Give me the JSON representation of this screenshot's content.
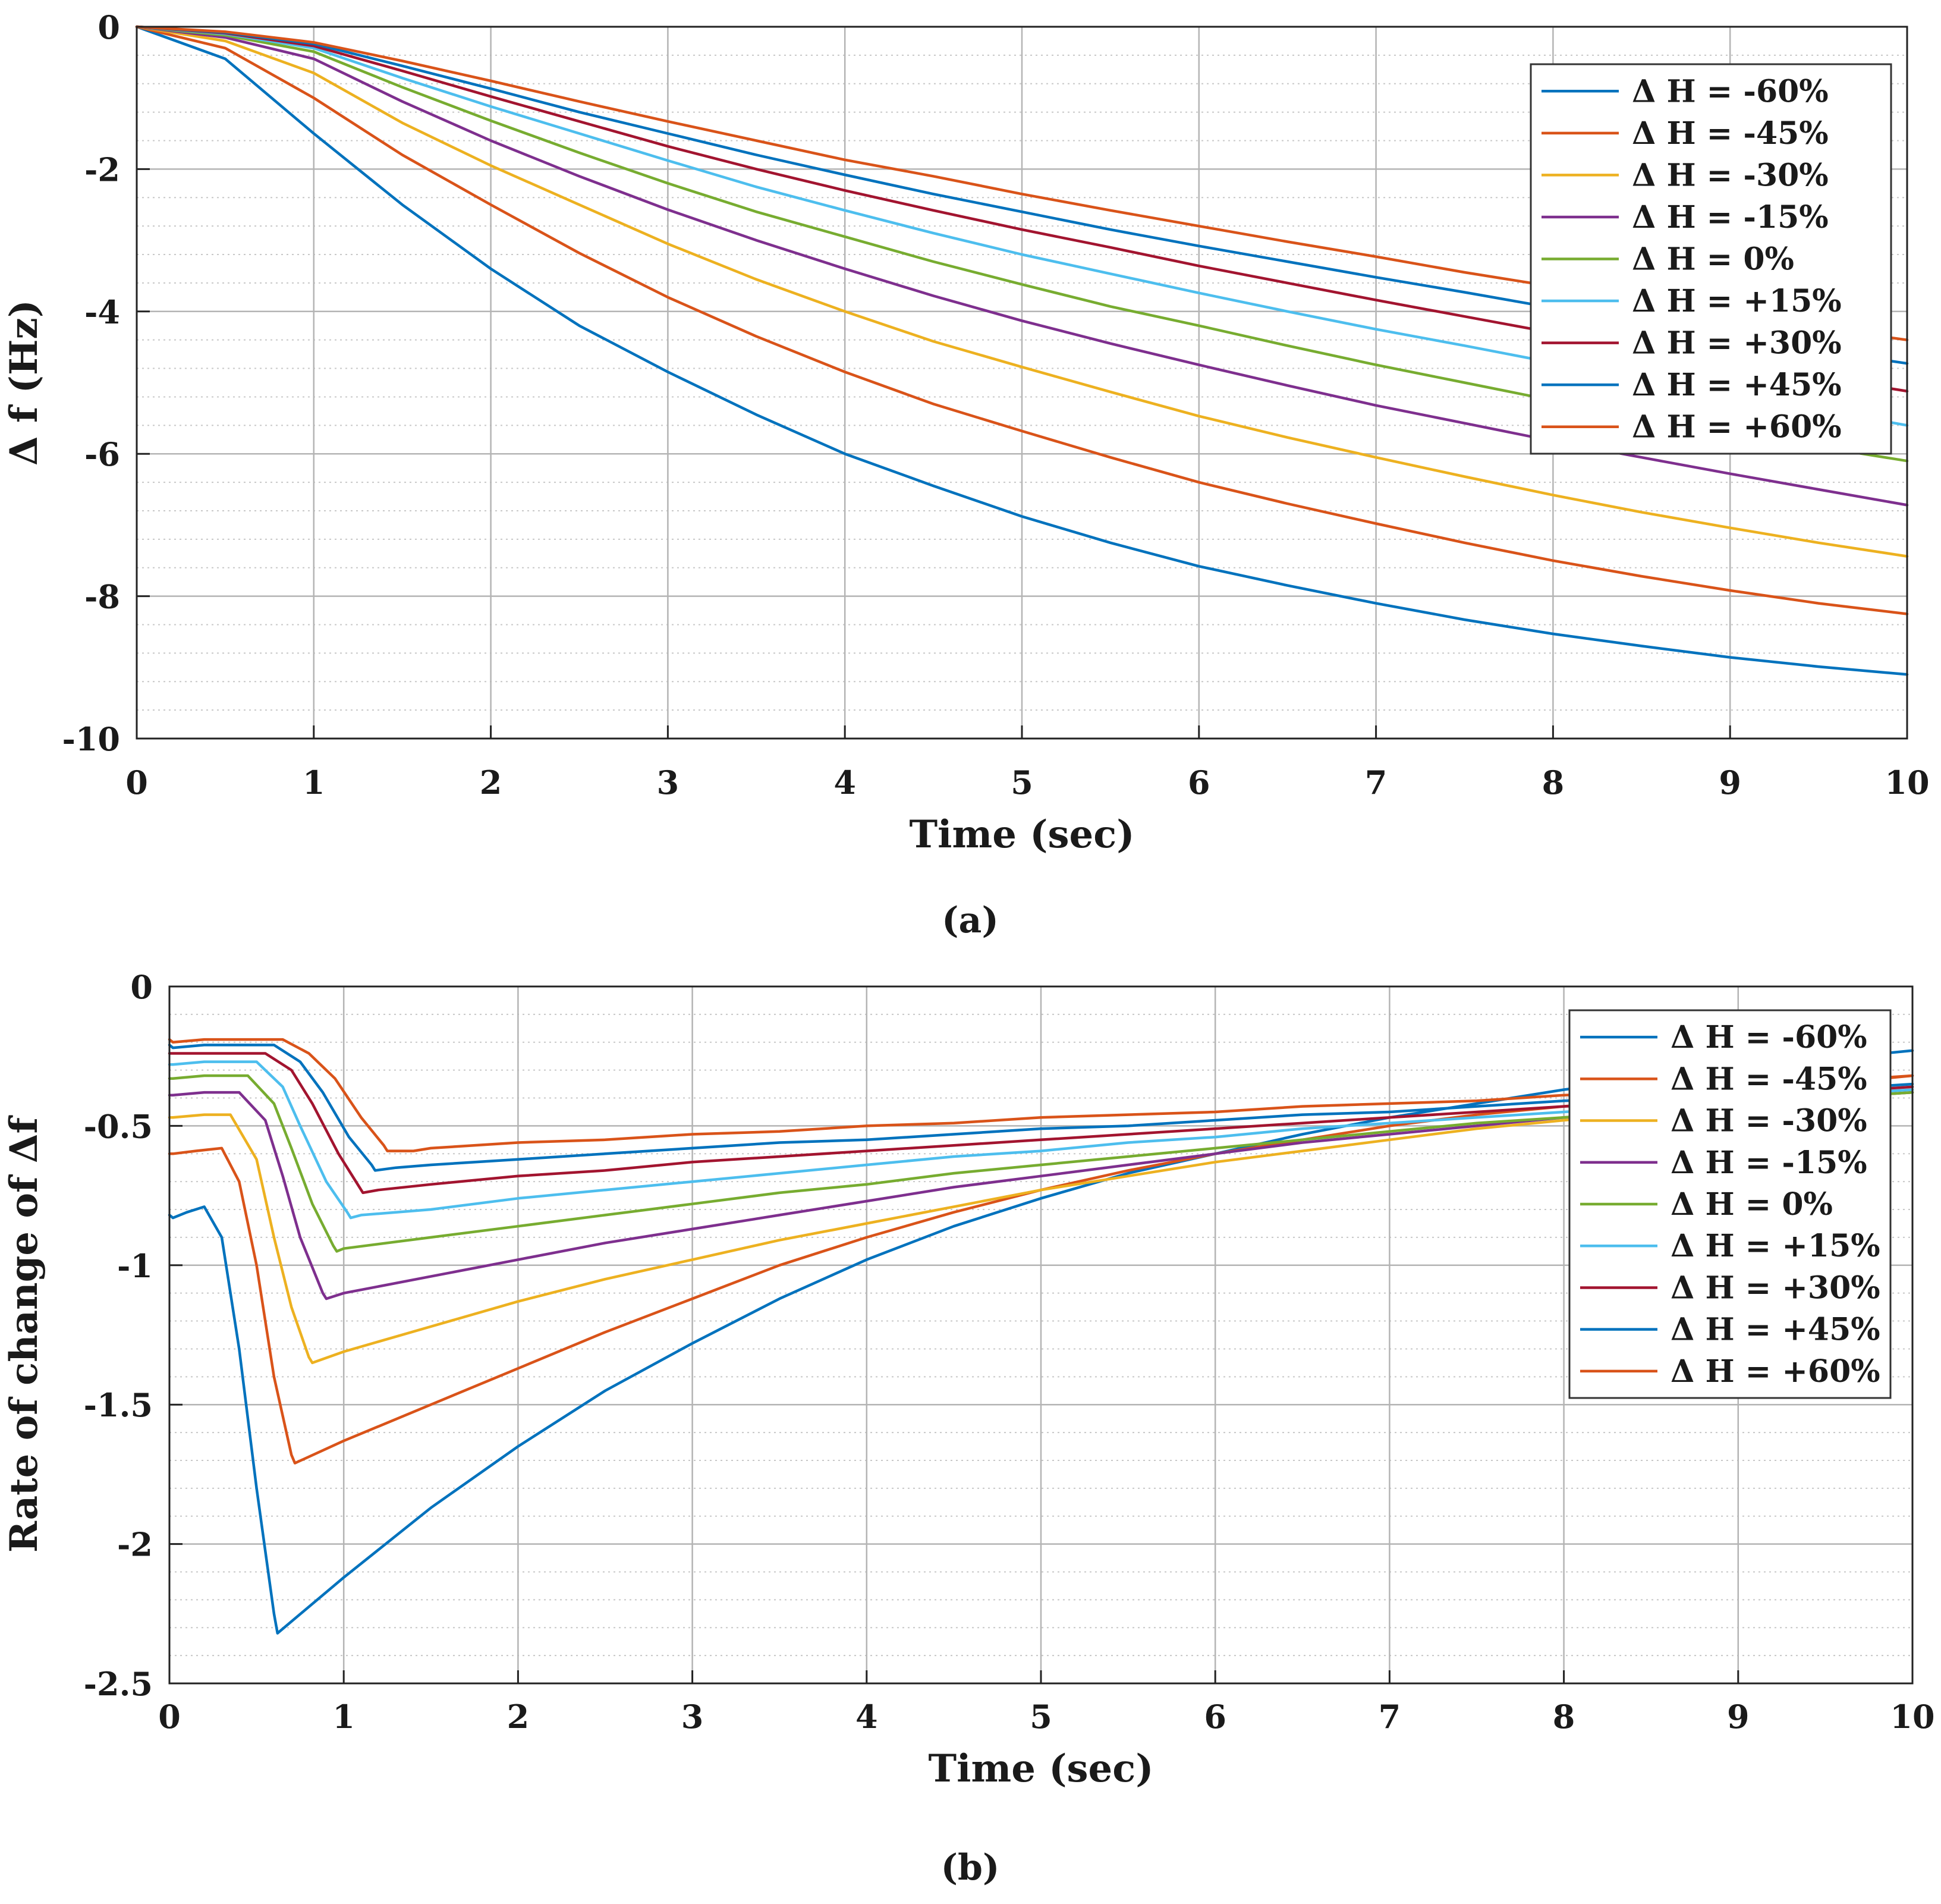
{
  "chart_data": [
    {
      "id": "a",
      "type": "line",
      "caption": "(a)",
      "title": "",
      "xlabel": "Time (sec)",
      "ylabel": "Δ f (Hz)",
      "xlim": [
        0,
        10
      ],
      "ylim": [
        -10,
        0
      ],
      "xticks": [
        "0",
        "1",
        "2",
        "3",
        "4",
        "5",
        "6",
        "7",
        "8",
        "9",
        "10"
      ],
      "yticks": [
        "0",
        "-2",
        "-4",
        "-6",
        "-8",
        "-10"
      ],
      "ytick_values": [
        0,
        -2,
        -4,
        -6,
        -8,
        -10
      ],
      "grid": true,
      "minor_grid_y": true,
      "legend_position": "top-right",
      "x": [
        0,
        0.5,
        1,
        1.5,
        2,
        2.5,
        3,
        3.5,
        4,
        4.5,
        5,
        5.5,
        6,
        6.5,
        7,
        7.5,
        8,
        8.5,
        9,
        9.5,
        10
      ],
      "series": [
        {
          "name": "Δ H = -60%",
          "color": "#0072BD",
          "values": [
            0,
            -0.45,
            -1.5,
            -2.5,
            -3.4,
            -4.2,
            -4.85,
            -5.45,
            -6.0,
            -6.45,
            -6.88,
            -7.25,
            -7.58,
            -7.85,
            -8.1,
            -8.33,
            -8.53,
            -8.7,
            -8.86,
            -8.99,
            -9.1
          ]
        },
        {
          "name": "Δ H = -45%",
          "color": "#D95319",
          "values": [
            0,
            -0.3,
            -1.0,
            -1.8,
            -2.5,
            -3.18,
            -3.8,
            -4.35,
            -4.85,
            -5.3,
            -5.68,
            -6.05,
            -6.4,
            -6.7,
            -6.98,
            -7.25,
            -7.5,
            -7.72,
            -7.92,
            -8.1,
            -8.25
          ]
        },
        {
          "name": "Δ H = -30%",
          "color": "#EDB120",
          "values": [
            0,
            -0.2,
            -0.65,
            -1.35,
            -1.95,
            -2.5,
            -3.05,
            -3.55,
            -4.0,
            -4.42,
            -4.78,
            -5.13,
            -5.47,
            -5.77,
            -6.05,
            -6.32,
            -6.58,
            -6.82,
            -7.04,
            -7.25,
            -7.44
          ]
        },
        {
          "name": "Δ H = -15%",
          "color": "#7E2F8E",
          "values": [
            0,
            -0.15,
            -0.45,
            -1.05,
            -1.6,
            -2.1,
            -2.57,
            -3.0,
            -3.4,
            -3.78,
            -4.13,
            -4.45,
            -4.75,
            -5.04,
            -5.32,
            -5.57,
            -5.82,
            -6.05,
            -6.28,
            -6.5,
            -6.72
          ]
        },
        {
          "name": "Δ H = 0%",
          "color": "#77AC30",
          "values": [
            0,
            -0.12,
            -0.35,
            -0.85,
            -1.32,
            -1.77,
            -2.2,
            -2.6,
            -2.95,
            -3.3,
            -3.62,
            -3.93,
            -4.2,
            -4.48,
            -4.75,
            -5.0,
            -5.25,
            -5.47,
            -5.7,
            -5.9,
            -6.1
          ]
        },
        {
          "name": "Δ H = +15%",
          "color": "#4DBEEE",
          "values": [
            0,
            -0.1,
            -0.3,
            -0.72,
            -1.12,
            -1.5,
            -1.88,
            -2.25,
            -2.58,
            -2.9,
            -3.2,
            -3.47,
            -3.74,
            -4.0,
            -4.25,
            -4.48,
            -4.72,
            -4.95,
            -5.17,
            -5.38,
            -5.6
          ]
        },
        {
          "name": "Δ H = +30%",
          "color": "#A2142F",
          "values": [
            0,
            -0.09,
            -0.27,
            -0.62,
            -0.98,
            -1.33,
            -1.68,
            -2.0,
            -2.3,
            -2.58,
            -2.85,
            -3.1,
            -3.36,
            -3.6,
            -3.84,
            -4.07,
            -4.3,
            -4.5,
            -4.72,
            -4.92,
            -5.12
          ]
        },
        {
          "name": "Δ H = +45%",
          "color": "#0072BD",
          "values": [
            0,
            -0.08,
            -0.24,
            -0.55,
            -0.87,
            -1.2,
            -1.5,
            -1.8,
            -2.08,
            -2.35,
            -2.6,
            -2.85,
            -3.08,
            -3.3,
            -3.52,
            -3.73,
            -3.95,
            -4.15,
            -4.35,
            -4.55,
            -4.73
          ]
        },
        {
          "name": "Δ H = +60%",
          "color": "#D95319",
          "values": [
            0,
            -0.07,
            -0.22,
            -0.48,
            -0.76,
            -1.05,
            -1.33,
            -1.6,
            -1.87,
            -2.1,
            -2.35,
            -2.58,
            -2.8,
            -3.02,
            -3.23,
            -3.45,
            -3.65,
            -3.85,
            -4.04,
            -4.23,
            -4.4
          ]
        }
      ]
    },
    {
      "id": "b",
      "type": "line",
      "caption": "(b)",
      "title": "",
      "xlabel": "Time (sec)",
      "ylabel": "Rate of change of Δf",
      "xlim": [
        0,
        10
      ],
      "ylim": [
        -2.5,
        0
      ],
      "xticks": [
        "0",
        "1",
        "2",
        "3",
        "4",
        "5",
        "6",
        "7",
        "8",
        "9",
        "10"
      ],
      "yticks": [
        "0",
        "-0.5",
        "-1",
        "-1.5",
        "-2",
        "-2.5"
      ],
      "ytick_values": [
        0,
        -0.5,
        -1,
        -1.5,
        -2,
        -2.5
      ],
      "grid": true,
      "minor_grid_y": true,
      "legend_position": "top-right",
      "series": [
        {
          "name": "Δ H = -60%",
          "color": "#0072BD",
          "x": [
            0,
            0.02,
            0.1,
            0.2,
            0.3,
            0.4,
            0.5,
            0.6,
            0.62,
            1,
            1.5,
            2,
            2.5,
            3,
            3.5,
            4,
            4.5,
            5,
            5.5,
            6,
            6.5,
            7,
            7.5,
            8,
            8.5,
            9,
            9.5,
            10
          ],
          "values": [
            -0.82,
            -0.83,
            -0.81,
            -0.79,
            -0.9,
            -1.3,
            -1.8,
            -2.25,
            -2.32,
            -2.12,
            -1.87,
            -1.65,
            -1.45,
            -1.28,
            -1.12,
            -0.98,
            -0.86,
            -0.76,
            -0.67,
            -0.6,
            -0.53,
            -0.47,
            -0.42,
            -0.37,
            -0.33,
            -0.29,
            -0.26,
            -0.23
          ]
        },
        {
          "name": "Δ H = -45%",
          "color": "#D95319",
          "x": [
            0,
            0.02,
            0.15,
            0.3,
            0.4,
            0.5,
            0.6,
            0.7,
            0.72,
            1,
            1.5,
            2,
            2.5,
            3,
            3.5,
            4,
            4.5,
            5,
            5.5,
            6,
            6.5,
            7,
            7.5,
            8,
            8.5,
            9,
            9.5,
            10
          ],
          "values": [
            -0.6,
            -0.6,
            -0.59,
            -0.58,
            -0.7,
            -1.0,
            -1.4,
            -1.68,
            -1.71,
            -1.63,
            -1.5,
            -1.37,
            -1.24,
            -1.12,
            -1.0,
            -0.9,
            -0.81,
            -0.73,
            -0.66,
            -0.6,
            -0.55,
            -0.5,
            -0.46,
            -0.43,
            -0.4,
            -0.37,
            -0.35,
            -0.32
          ]
        },
        {
          "name": "Δ H = -30%",
          "color": "#EDB120",
          "x": [
            0,
            0.02,
            0.2,
            0.35,
            0.5,
            0.6,
            0.7,
            0.8,
            0.82,
            1,
            1.5,
            2,
            2.5,
            3,
            3.5,
            4,
            4.5,
            5,
            5.5,
            6,
            6.5,
            7,
            7.5,
            8,
            8.5,
            9,
            9.5,
            10
          ],
          "values": [
            -0.47,
            -0.47,
            -0.46,
            -0.46,
            -0.62,
            -0.9,
            -1.15,
            -1.33,
            -1.35,
            -1.31,
            -1.22,
            -1.13,
            -1.05,
            -0.98,
            -0.91,
            -0.85,
            -0.79,
            -0.73,
            -0.68,
            -0.63,
            -0.59,
            -0.55,
            -0.51,
            -0.48,
            -0.45,
            -0.42,
            -0.4,
            -0.38
          ]
        },
        {
          "name": "Δ H = -15%",
          "color": "#7E2F8E",
          "x": [
            0,
            0.02,
            0.2,
            0.4,
            0.55,
            0.65,
            0.75,
            0.88,
            0.9,
            1,
            1.5,
            2,
            2.5,
            3,
            3.5,
            4,
            4.5,
            5,
            5.5,
            6,
            6.5,
            7,
            7.5,
            8,
            8.5,
            9,
            9.5,
            10
          ],
          "values": [
            -0.39,
            -0.39,
            -0.38,
            -0.38,
            -0.48,
            -0.68,
            -0.9,
            -1.1,
            -1.12,
            -1.1,
            -1.04,
            -0.98,
            -0.92,
            -0.87,
            -0.82,
            -0.77,
            -0.72,
            -0.68,
            -0.64,
            -0.6,
            -0.56,
            -0.53,
            -0.5,
            -0.47,
            -0.45,
            -0.42,
            -0.4,
            -0.38
          ]
        },
        {
          "name": "Δ H = 0%",
          "color": "#77AC30",
          "x": [
            0,
            0.02,
            0.2,
            0.45,
            0.6,
            0.7,
            0.82,
            0.94,
            0.96,
            1,
            1.5,
            2,
            2.5,
            3,
            3.5,
            4,
            4.5,
            5,
            5.5,
            6,
            6.5,
            7,
            7.5,
            8,
            8.5,
            9,
            9.5,
            10
          ],
          "values": [
            -0.33,
            -0.33,
            -0.32,
            -0.32,
            -0.42,
            -0.58,
            -0.78,
            -0.93,
            -0.95,
            -0.94,
            -0.9,
            -0.86,
            -0.82,
            -0.78,
            -0.74,
            -0.71,
            -0.67,
            -0.64,
            -0.61,
            -0.58,
            -0.55,
            -0.52,
            -0.49,
            -0.47,
            -0.44,
            -0.42,
            -0.4,
            -0.38
          ]
        },
        {
          "name": "Δ H = +15%",
          "color": "#4DBEEE",
          "x": [
            0,
            0.02,
            0.2,
            0.5,
            0.65,
            0.75,
            0.9,
            1.02,
            1.04,
            1.1,
            1.5,
            2,
            2.5,
            3,
            3.5,
            4,
            4.5,
            5,
            5.5,
            6,
            6.5,
            7,
            7.5,
            8,
            8.5,
            9,
            9.5,
            10
          ],
          "values": [
            -0.28,
            -0.28,
            -0.27,
            -0.27,
            -0.36,
            -0.5,
            -0.7,
            -0.81,
            -0.83,
            -0.82,
            -0.8,
            -0.76,
            -0.73,
            -0.7,
            -0.67,
            -0.64,
            -0.61,
            -0.59,
            -0.56,
            -0.54,
            -0.51,
            -0.49,
            -0.47,
            -0.45,
            -0.43,
            -0.41,
            -0.39,
            -0.37
          ]
        },
        {
          "name": "Δ H = +30%",
          "color": "#A2142F",
          "x": [
            0,
            0.02,
            0.2,
            0.55,
            0.7,
            0.82,
            0.97,
            1.09,
            1.11,
            1.2,
            1.5,
            2,
            2.5,
            3,
            3.5,
            4,
            4.5,
            5,
            5.5,
            6,
            6.5,
            7,
            7.5,
            8,
            8.5,
            9,
            9.5,
            10
          ],
          "values": [
            -0.24,
            -0.24,
            -0.24,
            -0.24,
            -0.3,
            -0.42,
            -0.6,
            -0.72,
            -0.74,
            -0.73,
            -0.71,
            -0.68,
            -0.66,
            -0.63,
            -0.61,
            -0.59,
            -0.57,
            -0.55,
            -0.53,
            -0.51,
            -0.49,
            -0.47,
            -0.45,
            -0.43,
            -0.42,
            -0.4,
            -0.38,
            -0.36
          ]
        },
        {
          "name": "Δ H = +45%",
          "color": "#0072BD",
          "x": [
            0,
            0.02,
            0.2,
            0.6,
            0.75,
            0.88,
            1.03,
            1.16,
            1.18,
            1.3,
            1.5,
            2,
            2.5,
            3,
            3.5,
            4,
            4.5,
            5,
            5.5,
            6,
            6.5,
            7,
            7.5,
            8,
            8.5,
            9,
            9.5,
            10
          ],
          "values": [
            -0.21,
            -0.22,
            -0.21,
            -0.21,
            -0.27,
            -0.38,
            -0.54,
            -0.64,
            -0.66,
            -0.65,
            -0.64,
            -0.62,
            -0.6,
            -0.58,
            -0.56,
            -0.55,
            -0.53,
            -0.51,
            -0.5,
            -0.48,
            -0.46,
            -0.45,
            -0.43,
            -0.41,
            -0.4,
            -0.38,
            -0.37,
            -0.35
          ]
        },
        {
          "name": "Δ H = +60%",
          "color": "#D95319",
          "x": [
            0,
            0.02,
            0.2,
            0.65,
            0.8,
            0.95,
            1.1,
            1.23,
            1.25,
            1.4,
            1.5,
            2,
            2.5,
            3,
            3.5,
            4,
            4.5,
            5,
            5.5,
            6,
            6.5,
            7,
            7.5,
            8,
            8.5,
            9,
            9.5,
            10
          ],
          "values": [
            -0.19,
            -0.2,
            -0.19,
            -0.19,
            -0.24,
            -0.33,
            -0.47,
            -0.57,
            -0.59,
            -0.59,
            -0.58,
            -0.56,
            -0.55,
            -0.53,
            -0.52,
            -0.5,
            -0.49,
            -0.47,
            -0.46,
            -0.45,
            -0.43,
            -0.42,
            -0.41,
            -0.39,
            -0.38,
            -0.36,
            -0.34,
            -0.32
          ]
        }
      ]
    }
  ]
}
